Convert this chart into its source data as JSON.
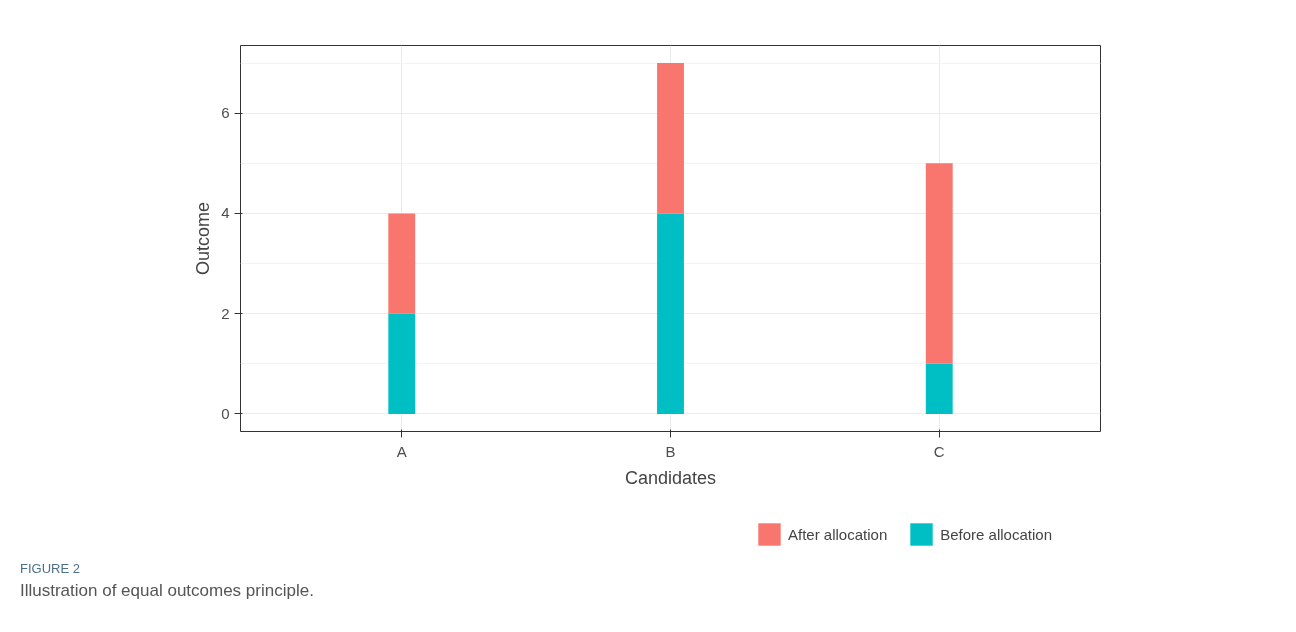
{
  "chart_data": {
    "type": "bar",
    "stacked": true,
    "xlabel": "Candidates",
    "ylabel": "Outcome",
    "categories": [
      "A",
      "B",
      "C"
    ],
    "series": [
      {
        "name": "Before allocation",
        "color": "#00bfc4",
        "values": [
          2,
          4,
          1
        ]
      },
      {
        "name": "After allocation",
        "color": "#f8766d",
        "values": [
          2,
          3,
          4
        ]
      }
    ],
    "ylim": [
      -0.35,
      7.35
    ],
    "yticks": [
      0,
      2,
      4,
      6
    ],
    "grid": true,
    "legend": "bottom",
    "annotations": [
      "FIGURE 2",
      "Illustration of equal outcomes principle."
    ]
  }
}
